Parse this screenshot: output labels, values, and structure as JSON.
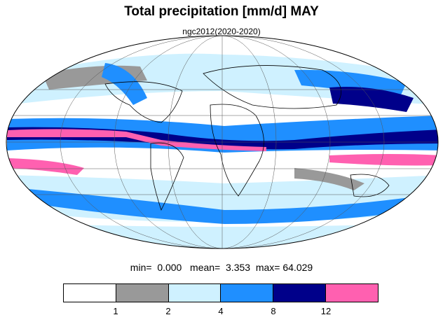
{
  "title": "Total precipitation [mm/d] MAY",
  "subtitle": "ngc2012(2020-2020)",
  "stats": {
    "min_label": "min=",
    "min": "0.000",
    "mean_label": "mean=",
    "mean": "3.353",
    "max_label": "max=",
    "max": "64.029"
  },
  "colorbar": {
    "colors": [
      "#ffffff",
      "#999999",
      "#cff1ff",
      "#1f8fff",
      "#00008a",
      "#ff60b0"
    ],
    "ticks": [
      "1",
      "2",
      "4",
      "8",
      "12"
    ]
  },
  "map": {
    "projection": "mollweide",
    "gridlines": true,
    "coastlines": true
  }
}
